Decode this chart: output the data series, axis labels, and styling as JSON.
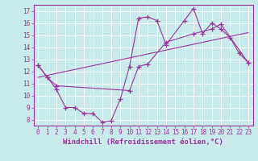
{
  "xlabel": "Windchill (Refroidissement éolien,°C)",
  "bg_color": "#c8eaea",
  "line_color": "#993399",
  "grid_color": "#ffffff",
  "xlim": [
    -0.5,
    23.5
  ],
  "ylim": [
    7.5,
    17.5
  ],
  "xticks": [
    0,
    1,
    2,
    3,
    4,
    5,
    6,
    7,
    8,
    9,
    10,
    11,
    12,
    13,
    14,
    15,
    16,
    17,
    18,
    19,
    20,
    21,
    22,
    23
  ],
  "yticks": [
    8,
    9,
    10,
    11,
    12,
    13,
    14,
    15,
    16,
    17
  ],
  "line1_x": [
    0,
    1,
    2,
    3,
    4,
    5,
    6,
    7,
    8,
    9,
    10,
    11,
    12,
    13,
    14,
    16,
    17,
    18,
    19,
    20,
    21,
    22,
    23
  ],
  "line1_y": [
    12.5,
    11.5,
    10.5,
    9.0,
    9.0,
    8.5,
    8.5,
    7.8,
    7.9,
    9.7,
    12.4,
    16.4,
    16.5,
    16.2,
    14.2,
    16.2,
    17.2,
    15.1,
    16.0,
    15.5,
    14.8,
    13.5,
    12.7
  ],
  "line2_x": [
    0,
    1,
    2,
    10,
    11,
    12,
    14,
    17,
    19,
    20,
    23
  ],
  "line2_y": [
    12.5,
    11.5,
    10.8,
    10.4,
    12.4,
    12.6,
    14.4,
    15.1,
    15.5,
    15.9,
    12.7
  ],
  "line3_x": [
    0,
    23
  ],
  "line3_y": [
    11.5,
    15.2
  ],
  "xlabel_fontsize": 6.5,
  "tick_fontsize": 5.5
}
